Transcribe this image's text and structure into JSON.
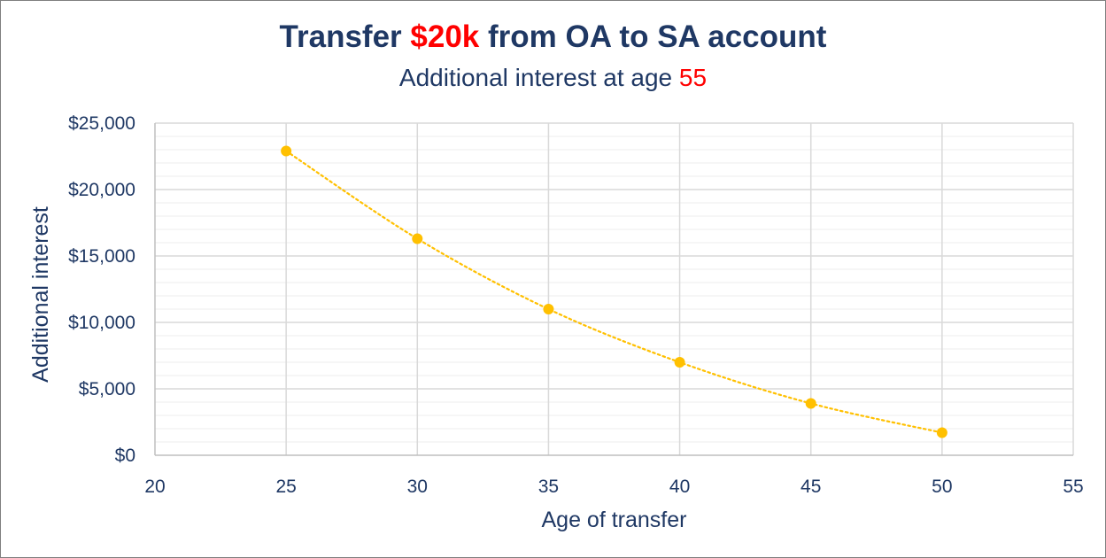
{
  "chart_data": {
    "type": "scatter",
    "title": {
      "prefix": "Transfer ",
      "highlight": "$20k",
      "suffix": " from OA to SA account"
    },
    "subtitle": {
      "prefix": "Additional interest at age ",
      "highlight": "55"
    },
    "xlabel": "Age of transfer",
    "ylabel": "Additional interest",
    "xlim": [
      20,
      55
    ],
    "ylim": [
      0,
      25000
    ],
    "x_ticks": [
      20,
      25,
      30,
      35,
      40,
      45,
      50,
      55
    ],
    "x_tick_labels": [
      "20",
      "25",
      "30",
      "35",
      "40",
      "45",
      "50",
      "55"
    ],
    "y_ticks": [
      0,
      5000,
      10000,
      15000,
      20000,
      25000
    ],
    "y_tick_labels": [
      "$0",
      "$5,000",
      "$10,000",
      "$15,000",
      "$20,000",
      "$25,000"
    ],
    "grid": true,
    "minor_grid": true,
    "trendline": "dotted",
    "series": [
      {
        "x": [
          25,
          30,
          35,
          40,
          45,
          50
        ],
        "y": [
          22900,
          16300,
          11000,
          7000,
          3900,
          1700
        ]
      }
    ],
    "colors": {
      "marker": "#ffc000",
      "text": "#1f3864",
      "highlight": "#ff0000",
      "major_grid": "#d9d9d9",
      "minor_grid": "#ededed",
      "axis": "#bfbfbf"
    }
  }
}
